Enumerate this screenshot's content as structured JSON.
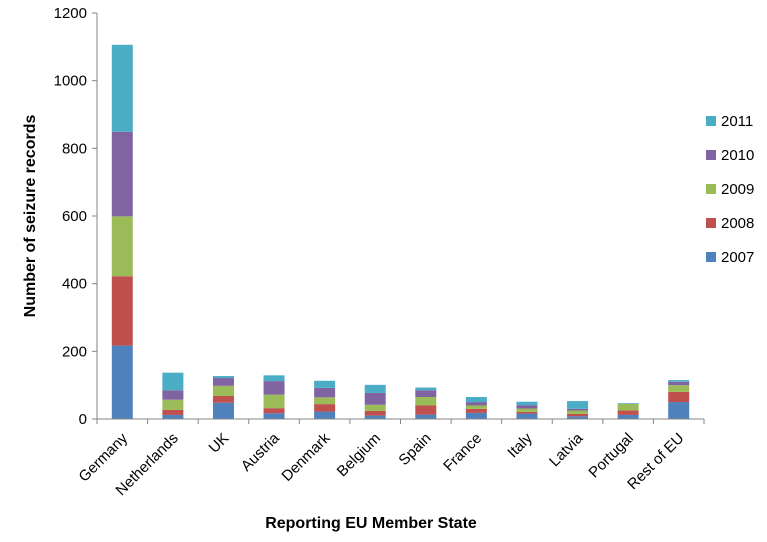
{
  "chart_data": {
    "type": "bar",
    "stacked": true,
    "xlabel": "Reporting EU Member State",
    "ylabel": "Number of seizure records",
    "ylim": [
      0,
      1200
    ],
    "yticks": [
      0,
      200,
      400,
      600,
      800,
      1000,
      1200
    ],
    "grid": false,
    "legend_position": "right",
    "categories": [
      "Germany",
      "Netherlands",
      "UK",
      "Austria",
      "Denmark",
      "Belgium",
      "Spain",
      "France",
      "Italy",
      "Latvia",
      "Portugal",
      "Rest of EU"
    ],
    "series": [
      {
        "name": "2007",
        "color": "#4F81BD",
        "values": [
          217,
          12,
          48,
          17,
          22,
          10,
          13,
          18,
          16,
          8,
          12,
          50
        ]
      },
      {
        "name": "2008",
        "color": "#C0504D",
        "values": [
          205,
          15,
          20,
          15,
          22,
          14,
          27,
          12,
          5,
          7,
          13,
          30
        ]
      },
      {
        "name": "2009",
        "color": "#9BBB59",
        "values": [
          177,
          30,
          30,
          40,
          20,
          18,
          25,
          10,
          10,
          10,
          20,
          20
        ]
      },
      {
        "name": "2010",
        "color": "#8064A2",
        "values": [
          250,
          28,
          23,
          40,
          28,
          35,
          20,
          10,
          10,
          5,
          0,
          10
        ]
      },
      {
        "name": "2011",
        "color": "#4BACC6",
        "values": [
          257,
          52,
          6,
          17,
          21,
          24,
          8,
          15,
          10,
          23,
          2,
          5
        ]
      }
    ]
  }
}
